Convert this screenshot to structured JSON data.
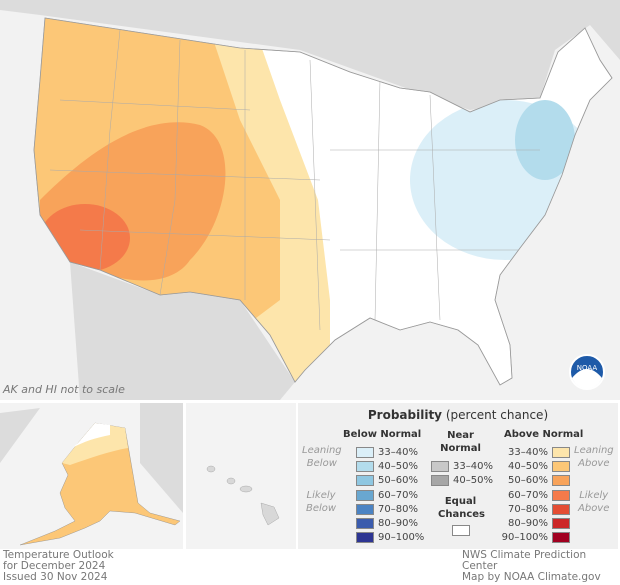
{
  "map": {
    "note": "AK and HI not to scale",
    "logo": "NOAA"
  },
  "legend": {
    "title_bold": "Probability",
    "title_rest": "(percent chance)",
    "below_header": "Below Normal",
    "near_header_1": "Near",
    "near_header_2": "Normal",
    "above_header": "Above Normal",
    "leaning_below": [
      "Leaning",
      "Below"
    ],
    "likely_below": [
      "Likely",
      "Below"
    ],
    "leaning_above": [
      "Leaning",
      "Above"
    ],
    "likely_above": [
      "Likely",
      "Above"
    ],
    "below": [
      {
        "label": "33–40%",
        "color": "#dbeff8"
      },
      {
        "label": "40–50%",
        "color": "#b3dcec"
      },
      {
        "label": "50–60%",
        "color": "#8fc7e1"
      },
      {
        "label": "60–70%",
        "color": "#69a7d0"
      },
      {
        "label": "70–80%",
        "color": "#4b83c3"
      },
      {
        "label": "80–90%",
        "color": "#3b5cad"
      },
      {
        "label": "90–100%",
        "color": "#2d3592"
      }
    ],
    "near": [
      {
        "label": "33–40%",
        "color": "#c8c8c8"
      },
      {
        "label": "40–50%",
        "color": "#a6a6a6"
      }
    ],
    "equal_1": "Equal",
    "equal_2": "Chances",
    "above": [
      {
        "label": "33–40%",
        "color": "#fde5ab"
      },
      {
        "label": "40–50%",
        "color": "#fcc777"
      },
      {
        "label": "50–60%",
        "color": "#f8a35a"
      },
      {
        "label": "60–70%",
        "color": "#f47a4a"
      },
      {
        "label": "70–80%",
        "color": "#e44d33"
      },
      {
        "label": "80–90%",
        "color": "#cc2727"
      },
      {
        "label": "90–100%",
        "color": "#a10020"
      }
    ]
  },
  "caption_left": [
    "Temperature Outlook",
    "for December 2024",
    "Issued 30 Nov 2024"
  ],
  "caption_right": [
    "NWS Climate Prediction Center",
    "Map by NOAA Climate.gov"
  ]
}
